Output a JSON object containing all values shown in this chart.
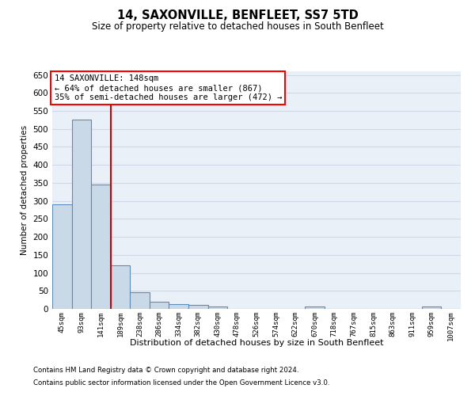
{
  "title": "14, SAXONVILLE, BENFLEET, SS7 5TD",
  "subtitle": "Size of property relative to detached houses in South Benfleet",
  "xlabel": "Distribution of detached houses by size in South Benfleet",
  "ylabel": "Number of detached properties",
  "footnote1": "Contains HM Land Registry data © Crown copyright and database right 2024.",
  "footnote2": "Contains public sector information licensed under the Open Government Licence v3.0.",
  "categories": [
    "45sqm",
    "93sqm",
    "141sqm",
    "189sqm",
    "238sqm",
    "286sqm",
    "334sqm",
    "382sqm",
    "430sqm",
    "478sqm",
    "526sqm",
    "574sqm",
    "622sqm",
    "670sqm",
    "718sqm",
    "767sqm",
    "815sqm",
    "863sqm",
    "911sqm",
    "959sqm",
    "1007sqm"
  ],
  "values": [
    290,
    525,
    345,
    120,
    47,
    20,
    13,
    10,
    7,
    0,
    0,
    0,
    0,
    7,
    0,
    0,
    0,
    0,
    0,
    7,
    0
  ],
  "bar_color": "#c9d9e8",
  "bar_edge_color": "#5b8db8",
  "bar_edge_width": 0.8,
  "vline_x": 2,
  "vline_color": "#cc0000",
  "annotation_line1": "14 SAXONVILLE: 148sqm",
  "annotation_line2": "← 64% of detached houses are smaller (867)",
  "annotation_line3": "35% of semi-detached houses are larger (472) →",
  "ylim": [
    0,
    660
  ],
  "yticks": [
    0,
    50,
    100,
    150,
    200,
    250,
    300,
    350,
    400,
    450,
    500,
    550,
    600,
    650
  ],
  "grid_color": "#d0d8e8",
  "background_color": "#eaf0f8"
}
